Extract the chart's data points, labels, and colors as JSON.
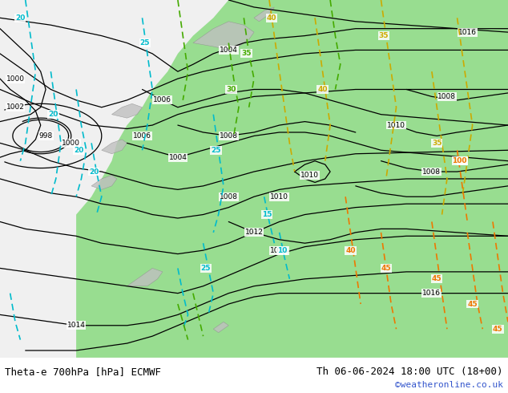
{
  "title_left": "Theta-e 700hPa [hPa] ECMWF",
  "title_right": "Th 06-06-2024 18:00 UTC (18+00)",
  "credit": "©weatheronline.co.uk",
  "bg_color": "#ffffff",
  "map_bg_color": "#f2f2f2",
  "green_fill_color": "#a8e6a0",
  "label_fontsize": 9,
  "title_fontsize": 9,
  "credit_fontsize": 8,
  "credit_color": "#3355cc",
  "figsize": [
    6.34,
    4.9
  ],
  "dpi": 100
}
